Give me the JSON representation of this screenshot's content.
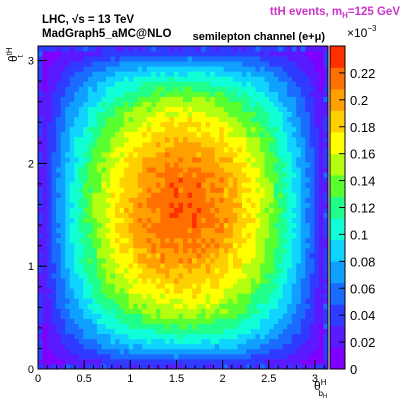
{
  "annotations": {
    "experiment": "LHC, √s = 13 TeV",
    "generator": "MadGraph5_aMC@NLO",
    "process_prefix": "ttH events, m",
    "process_sub": "H",
    "process_suffix": "=125 GeV",
    "channel": "semilepton channel (e+μ)",
    "process_color": "#cc33cc"
  },
  "chart_data": {
    "type": "heatmap",
    "title": "",
    "xlabel_main": "θ",
    "xlabel_sup": "H",
    "xlabel_sub": "b",
    "xlabel_subsub": "H",
    "ylabel_main": "θ",
    "ylabel_sup": "tH",
    "ylabel_sub": "t",
    "xlim": [
      0,
      3.14159
    ],
    "ylim": [
      0,
      3.14159
    ],
    "x_ticks": [
      "0",
      "0.5",
      "1",
      "1.5",
      "2",
      "2.5",
      "3"
    ],
    "x_tick_values": [
      0,
      0.5,
      1,
      1.5,
      2,
      2.5,
      3
    ],
    "y_ticks": [
      "0",
      "1",
      "2",
      "3"
    ],
    "y_tick_values": [
      0,
      1,
      2,
      3
    ],
    "z_range": [
      0,
      0.24
    ],
    "z_scale_label": "×10",
    "z_scale_exp": "−3",
    "z_ticks": [
      "0",
      "0.02",
      "0.04",
      "0.06",
      "0.08",
      "0.1",
      "0.12",
      "0.14",
      "0.16",
      "0.18",
      "0.2",
      "0.22"
    ],
    "z_tick_values": [
      0,
      0.02,
      0.04,
      0.06,
      0.08,
      0.1,
      0.12,
      0.14,
      0.16,
      0.18,
      0.2,
      0.22
    ],
    "bins": [
      64,
      64
    ],
    "peak_value": 0.22,
    "peak_x": 1.57,
    "peak_y": 1.57,
    "palette": [
      "#7f00ff",
      "#5a1aff",
      "#2f3bff",
      "#1a6cff",
      "#10a0ff",
      "#10d4ff",
      "#10ffd6",
      "#20ff8a",
      "#5aff30",
      "#b4ff10",
      "#ffff00",
      "#ffd000",
      "#ffa000",
      "#ff7000",
      "#ff3000"
    ]
  }
}
